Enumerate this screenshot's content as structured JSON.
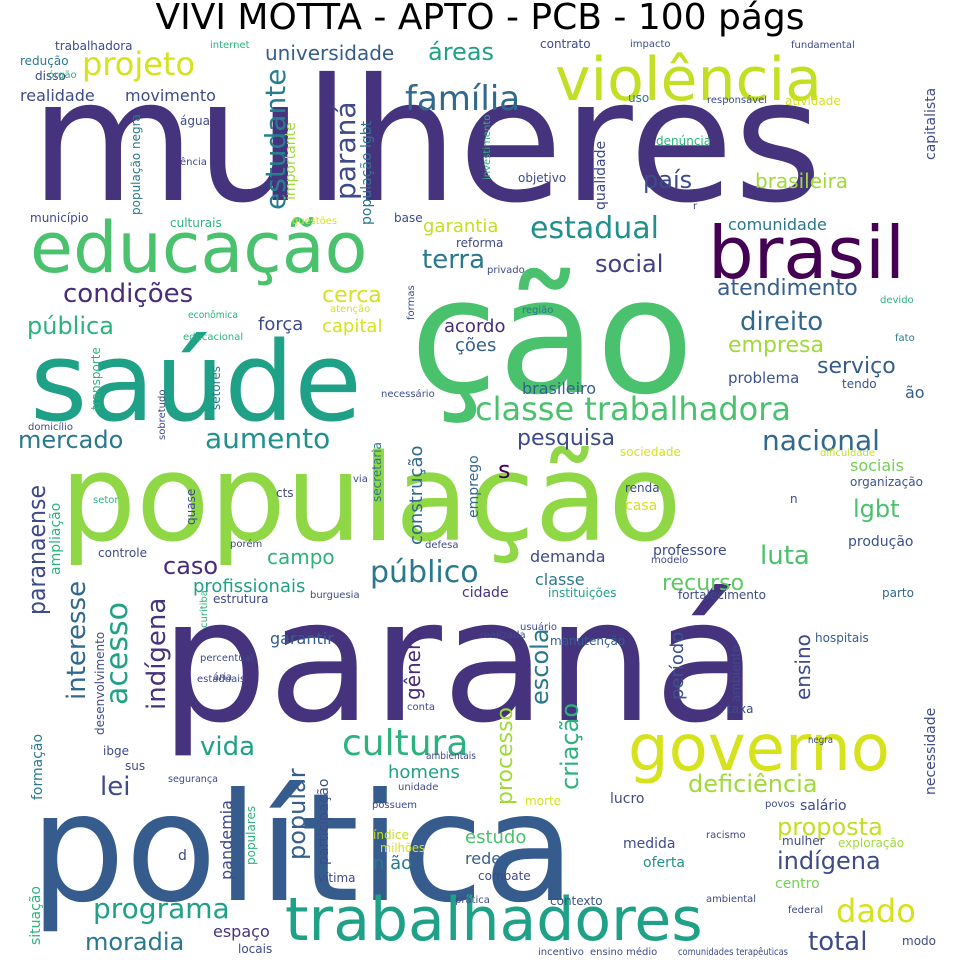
{
  "title": "VIVI MOTTA - APTO - PCB - 100 págs",
  "palette": {
    "dark_purple": "#440154",
    "indigo": "#46337e",
    "blue": "#365c8d",
    "teal": "#277f8e",
    "green_teal": "#1fa187",
    "green": "#4ac16d",
    "lime": "#a0da39",
    "yellow": "#d6e21b"
  },
  "words": [
    {
      "text": "mulheres",
      "color": "#46337e"
    },
    {
      "text": "ção",
      "color": "#4ac16d"
    },
    {
      "text": "paraná",
      "color": "#46337e"
    },
    {
      "text": "população",
      "color": "#8fd744"
    },
    {
      "text": "política",
      "color": "#365c8d"
    },
    {
      "text": "saúde",
      "color": "#1fa187"
    },
    {
      "text": "educação",
      "color": "#4ac16d"
    },
    {
      "text": "violência",
      "color": "#c2df23"
    },
    {
      "text": "brasil",
      "color": "#440154"
    },
    {
      "text": "trabalhadores",
      "color": "#1fa187"
    },
    {
      "text": "governo",
      "color": "#d6e21b"
    },
    {
      "text": "classe trabalhadora",
      "color": "#4ac16d"
    },
    {
      "text": "cultura",
      "color": "#2db27d"
    },
    {
      "text": "estudante",
      "color": "#277f8e"
    },
    {
      "text": "paraná",
      "color": "#3e4a89"
    },
    {
      "text": "projeto",
      "color": "#d6e21b"
    },
    {
      "text": "família",
      "color": "#31688e"
    },
    {
      "text": "áreas",
      "color": "#1fa187"
    },
    {
      "text": "universidade",
      "color": "#365c8d"
    },
    {
      "text": "estadual",
      "color": "#21908d"
    },
    {
      "text": "terra",
      "color": "#2a788e"
    },
    {
      "text": "social",
      "color": "#433e85"
    },
    {
      "text": "país",
      "color": "#3e4a89"
    },
    {
      "text": "brasileira",
      "color": "#9fda3a"
    },
    {
      "text": "garantia",
      "color": "#c2df23"
    },
    {
      "text": "comunidade",
      "color": "#2a788e"
    },
    {
      "text": "condições",
      "color": "#472c7a"
    },
    {
      "text": "cerca",
      "color": "#d6e21b"
    },
    {
      "text": "atendimento",
      "color": "#355f8d"
    },
    {
      "text": "direito",
      "color": "#31688e"
    },
    {
      "text": "empresa",
      "color": "#a0da39"
    },
    {
      "text": "pública",
      "color": "#2db27d"
    },
    {
      "text": "força",
      "color": "#3e4a89"
    },
    {
      "text": "capital",
      "color": "#d6e21b"
    },
    {
      "text": "acordo",
      "color": "#472c7a"
    },
    {
      "text": "ções",
      "color": "#355f8d"
    },
    {
      "text": "serviço",
      "color": "#365c8d"
    },
    {
      "text": "problema",
      "color": "#3b528b"
    },
    {
      "text": "tendo",
      "color": "#3b528b"
    },
    {
      "text": "ão",
      "color": "#365c8d"
    },
    {
      "text": "brasileiro",
      "color": "#355f8d"
    },
    {
      "text": "mercado",
      "color": "#2a788e"
    },
    {
      "text": "aumento",
      "color": "#21918c"
    },
    {
      "text": "pesquisa",
      "color": "#3e4a89"
    },
    {
      "text": "nacional",
      "color": "#31688e"
    },
    {
      "text": "s",
      "color": "#440154"
    },
    {
      "text": "sociais",
      "color": "#75d054"
    },
    {
      "text": "organização",
      "color": "#3b528b"
    },
    {
      "text": "lgbt",
      "color": "#4ac16d"
    },
    {
      "text": "paranaense",
      "color": "#3e4a89"
    },
    {
      "text": "campo",
      "color": "#2db27d"
    },
    {
      "text": "caso",
      "color": "#472c7a"
    },
    {
      "text": "público",
      "color": "#2a788e"
    },
    {
      "text": "demanda",
      "color": "#3e4a89"
    },
    {
      "text": "professore",
      "color": "#3e4a89"
    },
    {
      "text": "produção",
      "color": "#3b528b"
    },
    {
      "text": "luta",
      "color": "#4ac16d"
    },
    {
      "text": "recurso",
      "color": "#5ec962"
    },
    {
      "text": "profissionais",
      "color": "#1fa187"
    },
    {
      "text": "classe",
      "color": "#2a788e"
    },
    {
      "text": "cidade",
      "color": "#46337e"
    },
    {
      "text": "instituições",
      "color": "#1fa187"
    },
    {
      "text": "fortalecimento",
      "color": "#3e4a89"
    },
    {
      "text": "parto",
      "color": "#31688e"
    },
    {
      "text": "acesso",
      "color": "#1fa187"
    },
    {
      "text": "interesse",
      "color": "#31688e"
    },
    {
      "text": "indígena",
      "color": "#46337e"
    },
    {
      "text": "gênero",
      "color": "#472c7a"
    },
    {
      "text": "escola",
      "color": "#2a788e"
    },
    {
      "text": "processo",
      "color": "#a0da39"
    },
    {
      "text": "ensino",
      "color": "#3e4a89"
    },
    {
      "text": "período",
      "color": "#3b528b"
    },
    {
      "text": "garantir",
      "color": "#365c8d"
    },
    {
      "text": "manutenção",
      "color": "#365c8d"
    },
    {
      "text": "hospitais",
      "color": "#365c8d"
    },
    {
      "text": "vida",
      "color": "#1fa187"
    },
    {
      "text": "lei",
      "color": "#3e4a89"
    },
    {
      "text": "popular",
      "color": "#355f8d"
    },
    {
      "text": "criação",
      "color": "#2db27d"
    },
    {
      "text": "deficiência",
      "color": "#9fda3a"
    },
    {
      "text": "homens",
      "color": "#1fa187"
    },
    {
      "text": "necessidade",
      "color": "#3e4a89"
    },
    {
      "text": "proposta",
      "color": "#c2df23"
    },
    {
      "text": "indígena",
      "color": "#3e4a89"
    },
    {
      "text": "salário",
      "color": "#3e4a89"
    },
    {
      "text": "lucro",
      "color": "#3e4a89"
    },
    {
      "text": "estudo",
      "color": "#4ac16d"
    },
    {
      "text": "rede",
      "color": "#355f8d"
    },
    {
      "text": "medida",
      "color": "#3e4a89"
    },
    {
      "text": "n ão",
      "color": "#2a788e"
    },
    {
      "text": "pandemia",
      "color": "#3e4a89"
    },
    {
      "text": "dado",
      "color": "#d6e21b"
    },
    {
      "text": "programa",
      "color": "#1fa187"
    },
    {
      "text": "moradia",
      "color": "#2a788e"
    },
    {
      "text": "espaço",
      "color": "#46337e"
    },
    {
      "text": "total",
      "color": "#3e4a89"
    },
    {
      "text": "contexto",
      "color": "#3b528b"
    },
    {
      "text": "centro",
      "color": "#75d054"
    },
    {
      "text": "oferta",
      "color": "#21918c"
    },
    {
      "text": "combate",
      "color": "#3e4a89"
    },
    {
      "text": "construção",
      "color": "#31688e"
    },
    {
      "text": "emprego",
      "color": "#31688e"
    },
    {
      "text": "formação",
      "color": "#2a788e"
    },
    {
      "text": "desenvolvimento",
      "color": "#3e4a89"
    },
    {
      "text": "ampliação",
      "color": "#2db27d"
    },
    {
      "text": "participação",
      "color": "#3e4a89"
    },
    {
      "text": "movimento",
      "color": "#3e4a89"
    },
    {
      "text": "realidade",
      "color": "#3e4a89"
    },
    {
      "text": "população lgbt",
      "color": "#2a788e"
    },
    {
      "text": "importante",
      "color": "#9fda3a"
    },
    {
      "text": "qualidade",
      "color": "#3e4a89"
    },
    {
      "text": "capitalista",
      "color": "#3e4a89"
    },
    {
      "text": "trabalhadora",
      "color": "#3e4a89"
    },
    {
      "text": "redução",
      "color": "#2a788e"
    },
    {
      "text": "disso",
      "color": "#3e4a89"
    },
    {
      "text": "objetivo",
      "color": "#3e4a89"
    },
    {
      "text": "denúncia",
      "color": "#2db27d"
    },
    {
      "text": "atividade",
      "color": "#d6e21b"
    },
    {
      "text": "base",
      "color": "#3e4a89"
    },
    {
      "text": "reforma",
      "color": "#3e4a89"
    },
    {
      "text": "município",
      "color": "#3e4a89"
    },
    {
      "text": "culturais",
      "color": "#2db27d"
    },
    {
      "text": "educacional",
      "color": "#2db27d"
    },
    {
      "text": "transporte",
      "color": "#2db27d"
    },
    {
      "text": "setores",
      "color": "#2a788e"
    },
    {
      "text": "cts",
      "color": "#3e4a89"
    },
    {
      "text": "quase",
      "color": "#3e4a89"
    },
    {
      "text": "secretaria",
      "color": "#2a788e"
    },
    {
      "text": "controle",
      "color": "#3e4a89"
    },
    {
      "text": "estrutura",
      "color": "#3e4a89"
    },
    {
      "text": "renda",
      "color": "#3e4a89"
    },
    {
      "text": "casa",
      "color": "#d6e21b"
    },
    {
      "text": "sociedade",
      "color": "#d6e21b"
    },
    {
      "text": "contrato",
      "color": "#3e4a89"
    },
    {
      "text": "situação",
      "color": "#2db27d"
    },
    {
      "text": "vítima",
      "color": "#3e4a89"
    },
    {
      "text": "locais",
      "color": "#3e4a89"
    },
    {
      "text": "ibge",
      "color": "#3e4a89"
    },
    {
      "text": "sus",
      "color": "#3e4a89"
    },
    {
      "text": "taxa",
      "color": "#3e4a89"
    },
    {
      "text": "mulher",
      "color": "#3e4a89"
    },
    {
      "text": "exploração",
      "color": "#9fda3a"
    },
    {
      "text": "índice",
      "color": "#c2df23"
    },
    {
      "text": "milhões",
      "color": "#d6e21b"
    },
    {
      "text": "ambiente",
      "color": "#3e4a89"
    },
    {
      "text": "morte",
      "color": "#d6e21b"
    },
    {
      "text": "d",
      "color": "#3e4a89"
    },
    {
      "text": "populares",
      "color": "#2db27d"
    },
    {
      "text": "uso",
      "color": "#2a788e"
    },
    {
      "text": "água",
      "color": "#3e4a89"
    },
    {
      "text": "internet",
      "color": "#2db27d"
    },
    {
      "text": "impacto",
      "color": "#3e4a89"
    },
    {
      "text": "fundamental",
      "color": "#3e4a89"
    },
    {
      "text": "órgão",
      "color": "#2db27d"
    },
    {
      "text": "responsável",
      "color": "#3e4a89"
    },
    {
      "text": "população negra",
      "color": "#2a788e"
    },
    {
      "text": "ência",
      "color": "#3e4a89"
    },
    {
      "text": "investimento",
      "color": "#2db27d"
    },
    {
      "text": "questões",
      "color": "#d6e21b"
    },
    {
      "text": "privado",
      "color": "#3e4a89"
    },
    {
      "text": "formas",
      "color": "#3e4a89"
    },
    {
      "text": "econômica",
      "color": "#2db27d"
    },
    {
      "text": "atenção",
      "color": "#d6e21b"
    },
    {
      "text": "região",
      "color": "#2a788e"
    },
    {
      "text": "devido",
      "color": "#2db27d"
    },
    {
      "text": "fato",
      "color": "#2a788e"
    },
    {
      "text": "necessário",
      "color": "#3e4a89"
    },
    {
      "text": "domicílio",
      "color": "#3e4a89"
    },
    {
      "text": "sobretudo",
      "color": "#3e4a89"
    },
    {
      "text": "via",
      "color": "#3e4a89"
    },
    {
      "text": "dificuldade",
      "color": "#c2df23"
    },
    {
      "text": "setor",
      "color": "#2db27d"
    },
    {
      "text": "n",
      "color": "#3e4a89"
    },
    {
      "text": "porém",
      "color": "#3e4a89"
    },
    {
      "text": "defesa",
      "color": "#3e4a89"
    },
    {
      "text": "modelo",
      "color": "#3e4a89"
    },
    {
      "text": "burguesia",
      "color": "#3e4a89"
    },
    {
      "text": "usuário",
      "color": "#3e4a89"
    },
    {
      "text": "curitiba",
      "color": "#2db27d"
    },
    {
      "text": "realizada",
      "color": "#3e4a89"
    },
    {
      "text": "percentual",
      "color": "#3e4a89"
    },
    {
      "text": "ária",
      "color": "#3e4a89"
    },
    {
      "text": "estaduais",
      "color": "#3e4a89"
    },
    {
      "text": "conta",
      "color": "#3e4a89"
    },
    {
      "text": "ambientais",
      "color": "#3e4a89"
    },
    {
      "text": "unidade",
      "color": "#3e4a89"
    },
    {
      "text": "segurança",
      "color": "#3e4a89"
    },
    {
      "text": "possuem",
      "color": "#3e4a89"
    },
    {
      "text": "negra",
      "color": "#3e4a89"
    },
    {
      "text": "povos",
      "color": "#3e4a89"
    },
    {
      "text": "racismo",
      "color": "#3e4a89"
    },
    {
      "text": "prática",
      "color": "#3e4a89"
    },
    {
      "text": "ambiental",
      "color": "#3e4a89"
    },
    {
      "text": "federal",
      "color": "#3e4a89"
    },
    {
      "text": "modo",
      "color": "#3e4a89"
    },
    {
      "text": "incentivo",
      "color": "#3e4a89"
    },
    {
      "text": "ensino médio",
      "color": "#3e4a89"
    },
    {
      "text": "comunidades terapêuticas",
      "color": "#3e4a89"
    },
    {
      "text": "r",
      "color": "#3e4a89"
    }
  ]
}
